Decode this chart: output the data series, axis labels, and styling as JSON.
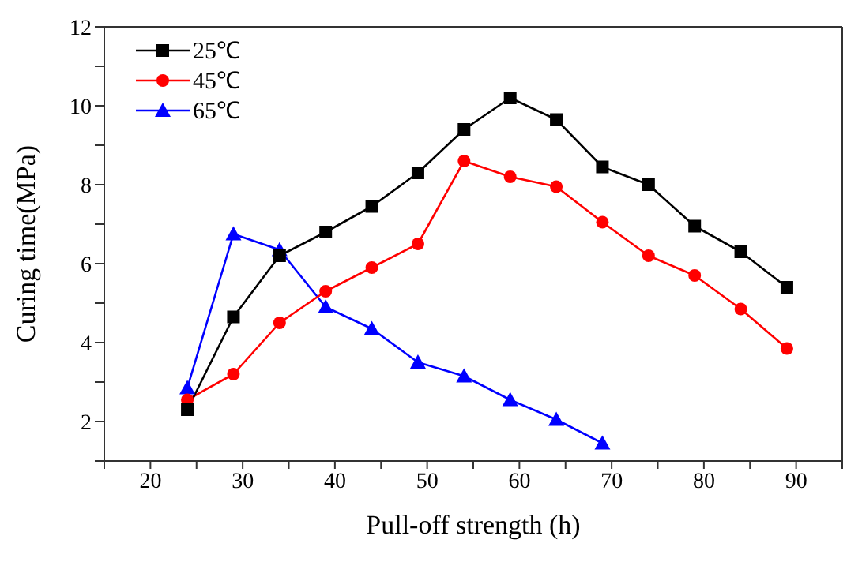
{
  "chart_data": {
    "type": "line",
    "xlabel": "Pull-off strength (h)",
    "ylabel": "Curing time(MPa)",
    "xlim": [
      15,
      95
    ],
    "xticks": [
      {
        "value": 15,
        "label": null
      },
      20,
      {
        "value": 25,
        "label": null
      },
      30,
      {
        "value": 35,
        "label": null
      },
      40,
      {
        "value": 45,
        "label": null
      },
      50,
      {
        "value": 55,
        "label": null
      },
      60,
      {
        "value": 65,
        "label": null
      },
      70,
      {
        "value": 75,
        "label": null
      },
      80,
      {
        "value": 85,
        "label": null
      },
      90,
      {
        "value": 95,
        "label": null
      }
    ],
    "ylim": [
      1,
      12
    ],
    "yticks": [
      {
        "value": 1,
        "label": null
      },
      2,
      {
        "value": 3,
        "label": null
      },
      4,
      {
        "value": 5,
        "label": null
      },
      6,
      {
        "value": 7,
        "label": null
      },
      8,
      {
        "value": 9,
        "label": null
      },
      10,
      {
        "value": 11,
        "label": null
      },
      12
    ],
    "grid": false,
    "legend": "top left",
    "line_style": "solid",
    "series": [
      {
        "name": "25℃",
        "color": "#000000",
        "marker": "square",
        "x": [
          24,
          29,
          34,
          39,
          44,
          49,
          54,
          59,
          64,
          69,
          74,
          79,
          84,
          89
        ],
        "values": [
          2.3,
          4.65,
          6.2,
          6.8,
          7.45,
          8.3,
          9.4,
          10.2,
          9.65,
          8.45,
          8.0,
          6.95,
          6.3,
          5.4
        ]
      },
      {
        "name": "45℃",
        "color": "#ff0000",
        "marker": "circle",
        "x": [
          24,
          29,
          34,
          39,
          44,
          49,
          54,
          59,
          64,
          69,
          74,
          79,
          84,
          89
        ],
        "values": [
          2.55,
          3.2,
          4.5,
          5.3,
          5.9,
          6.5,
          8.6,
          8.2,
          7.95,
          7.05,
          6.2,
          5.7,
          4.85,
          3.85
        ]
      },
      {
        "name": "65℃",
        "color": "#0000ff",
        "marker": "triangle",
        "x": [
          24,
          29,
          34,
          39,
          44,
          49,
          54,
          59,
          64,
          69
        ],
        "values": [
          2.85,
          6.75,
          6.35,
          4.9,
          4.35,
          3.5,
          3.15,
          2.55,
          2.05,
          1.45
        ]
      }
    ]
  }
}
